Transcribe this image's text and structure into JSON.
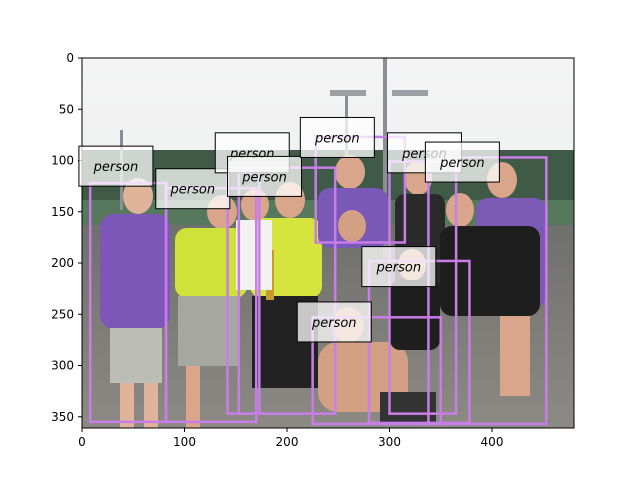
{
  "figure": {
    "x_ticks": [
      "0",
      "100",
      "200",
      "300",
      "400"
    ],
    "y_ticks": [
      "0",
      "50",
      "100",
      "150",
      "200",
      "250",
      "300",
      "350"
    ]
  },
  "box_color": "#c87ee8",
  "label_bg": "#ffffff",
  "detections": [
    {
      "label": "person",
      "x1": 8,
      "y1": 122,
      "x2": 82,
      "y2": 355
    },
    {
      "label": "person",
      "x1": 82,
      "y1": 127,
      "x2": 170,
      "y2": 355
    },
    {
      "label": "person",
      "x1": 153,
      "y1": 112,
      "x2": 173,
      "y2": 347
    },
    {
      "label": "person",
      "x1": 142,
      "y1": 107,
      "x2": 247,
      "y2": 347
    },
    {
      "label": "person",
      "x1": 228,
      "y1": 77,
      "x2": 315,
      "y2": 180
    },
    {
      "label": "person",
      "x1": 300,
      "y1": 101,
      "x2": 365,
      "y2": 347
    },
    {
      "label": "person",
      "x1": 338,
      "y1": 97,
      "x2": 453,
      "y2": 357
    },
    {
      "label": "person",
      "x1": 280,
      "y1": 198,
      "x2": 378,
      "y2": 356
    },
    {
      "label": "person",
      "x1": 225,
      "y1": 253,
      "x2": 350,
      "y2": 357
    }
  ],
  "label_boxes": [
    {
      "label": "person",
      "x": -3,
      "y": 86
    },
    {
      "label": "person",
      "x": 72,
      "y": 108
    },
    {
      "label": "person",
      "x": 130,
      "y": 73
    },
    {
      "label": "person",
      "x": 142,
      "y": 96
    },
    {
      "label": "person",
      "x": 213,
      "y": 58
    },
    {
      "label": "person",
      "x": 298,
      "y": 73
    },
    {
      "label": "person",
      "x": 335,
      "y": 82
    },
    {
      "label": "person",
      "x": 273,
      "y": 184
    },
    {
      "label": "person",
      "x": 210,
      "y": 238
    }
  ]
}
